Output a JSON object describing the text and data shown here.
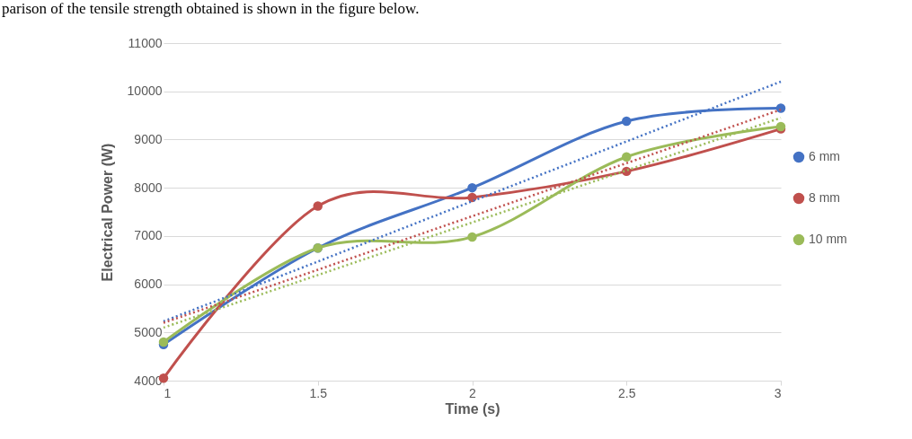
{
  "chart_data": {
    "type": "line",
    "xlabel": "Time (s)",
    "ylabel": "Electrical Power (W)",
    "annotations": [
      "parison of the tensile strength obtained is shown in the figure below."
    ],
    "x": [
      1,
      1.5,
      2,
      2.5,
      3
    ],
    "xlim": [
      1,
      3
    ],
    "xticks": [
      1,
      1.5,
      2,
      2.5,
      3
    ],
    "ylim": [
      4000,
      11000
    ],
    "yticks": [
      4000,
      5000,
      6000,
      7000,
      8000,
      9000,
      10000,
      11000
    ],
    "grid": "y",
    "legend": "right",
    "series": [
      {
        "name": "6 mm",
        "color": "#4472c4",
        "marker": "circle",
        "values": [
          4750,
          6750,
          8000,
          9380,
          9650
        ]
      },
      {
        "name": "8 mm",
        "color": "#c0504d",
        "marker": "circle",
        "values": [
          4050,
          7620,
          7800,
          8340,
          9220
        ]
      },
      {
        "name": "10 mm",
        "color": "#9bbb59",
        "marker": "circle",
        "values": [
          4800,
          6750,
          6980,
          8640,
          9270
        ]
      },
      {
        "type": "line",
        "color": "#4472c4",
        "marker": "none",
        "line_style": "dotted",
        "values": [
          5230,
          6470,
          7720,
          8960,
          10200
        ]
      },
      {
        "type": "line",
        "color": "#c0504d",
        "marker": "none",
        "line_style": "dotted",
        "values": [
          5200,
          6300,
          7410,
          8510,
          9620
        ]
      },
      {
        "type": "line",
        "color": "#9bbb59",
        "marker": "none",
        "line_style": "dotted",
        "values": [
          5100,
          6190,
          7280,
          8360,
          9450
        ]
      }
    ]
  }
}
